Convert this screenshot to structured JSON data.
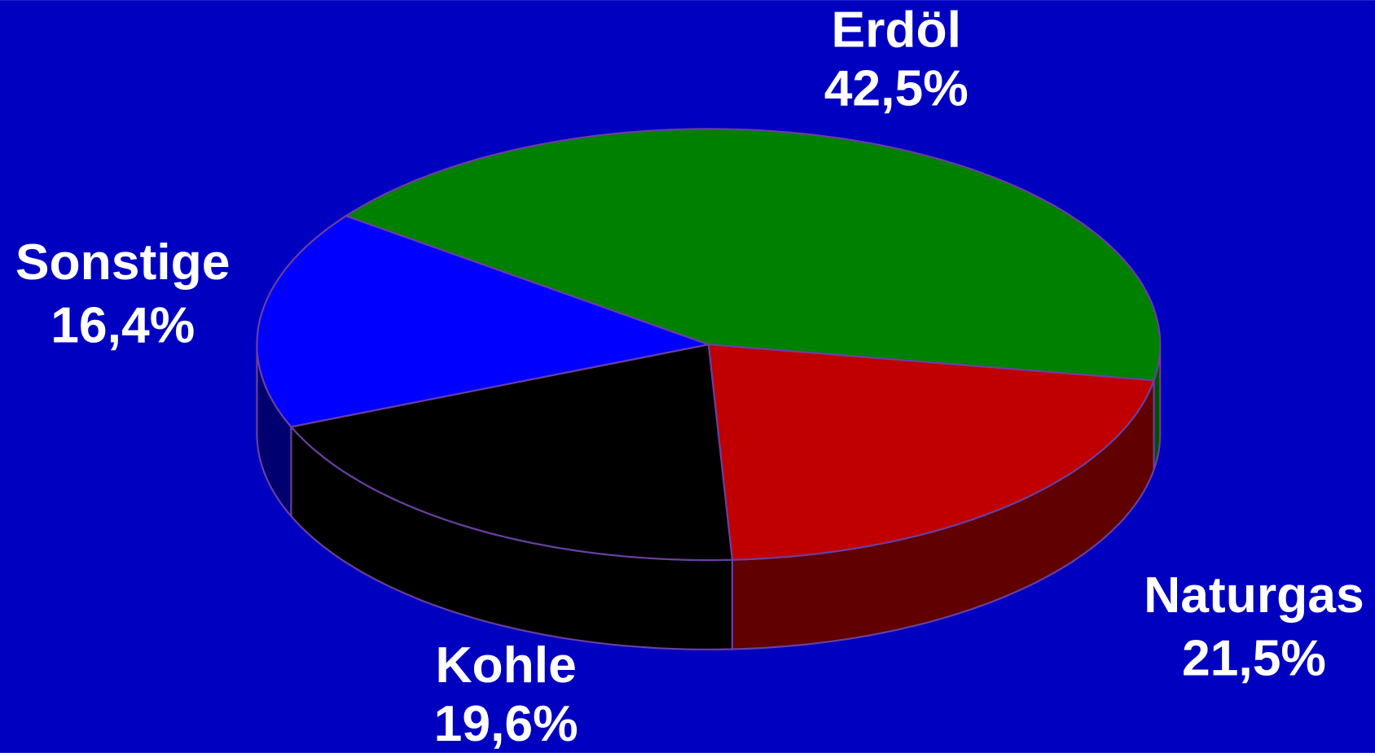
{
  "chart_data": {
    "type": "pie3d",
    "categories": [
      "Erdöl",
      "Naturgas",
      "Kohle",
      "Sonstige"
    ],
    "values": [
      42.5,
      21.5,
      19.6,
      16.4
    ],
    "value_labels": [
      "42,5%",
      "21,5%",
      "19,6%",
      "16,4%"
    ],
    "colors": [
      "#008000",
      "#c00000",
      "#000000",
      "#0000ff"
    ],
    "side_colors": [
      "#005000",
      "#600000",
      "#000000",
      "#000070"
    ],
    "background": "#0000c0"
  }
}
